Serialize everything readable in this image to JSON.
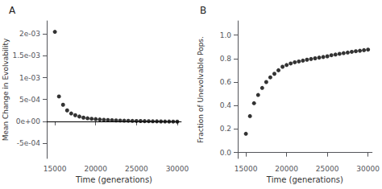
{
  "chart_data": [
    {
      "type": "scatter",
      "title": "A",
      "xlabel": "Time (generations)",
      "ylabel": "Mean Change in Evolvability",
      "x": [
        15000,
        15500,
        16000,
        16500,
        17000,
        17500,
        18000,
        18500,
        19000,
        19500,
        20000,
        20500,
        21000,
        21500,
        22000,
        22500,
        23000,
        23500,
        24000,
        24500,
        25000,
        25500,
        26000,
        26500,
        27000,
        27500,
        28000,
        28500,
        29000,
        29500,
        30000
      ],
      "values": [
        0.00205,
        0.00057,
        0.00038,
        0.00025,
        0.00018,
        0.00014,
        0.00011,
        8.5e-05,
        7e-05,
        5.8e-05,
        5e-05,
        4.2e-05,
        3.6e-05,
        3e-05,
        2.5e-05,
        2e-05,
        1.7e-05,
        1.5e-05,
        1.2e-05,
        1e-05,
        8e-06,
        6e-06,
        4e-06,
        3e-06,
        1e-06,
        0.0,
        -2e-06,
        -4e-06,
        -5e-06,
        -6e-06,
        -7e-06
      ],
      "color": "#000000",
      "reference_line": {
        "y": -4e-05,
        "color": "#000000"
      },
      "xlim": [
        14000,
        30500
      ],
      "xticks": [
        15000,
        20000,
        25000,
        30000
      ],
      "ylim": [
        -0.00085,
        0.0023
      ],
      "yticks": [
        {
          "value": -0.0005,
          "label": "-5e-04"
        },
        {
          "value": 0.0,
          "label": "0e+00"
        },
        {
          "value": 0.0005,
          "label": "5e-04"
        },
        {
          "value": 0.001,
          "label": "1e-03"
        },
        {
          "value": 0.0015,
          "label": "1.5e-03"
        },
        {
          "value": 0.002,
          "label": "2e-03"
        }
      ],
      "grid": false
    },
    {
      "type": "scatter",
      "title": "B",
      "xlabel": "Time (generations)",
      "ylabel": "Fraction of Unevolvable Pops.",
      "x": [
        15000,
        15500,
        16000,
        16500,
        17000,
        17500,
        18000,
        18500,
        19000,
        19500,
        20000,
        20500,
        21000,
        21500,
        22000,
        22500,
        23000,
        23500,
        24000,
        24500,
        25000,
        25500,
        26000,
        26500,
        27000,
        27500,
        28000,
        28500,
        29000,
        29500,
        30000
      ],
      "values": [
        0.16,
        0.31,
        0.42,
        0.49,
        0.55,
        0.6,
        0.64,
        0.67,
        0.7,
        0.73,
        0.745,
        0.758,
        0.768,
        0.775,
        0.782,
        0.79,
        0.796,
        0.802,
        0.808,
        0.813,
        0.819,
        0.828,
        0.834,
        0.84,
        0.846,
        0.851,
        0.857,
        0.862,
        0.866,
        0.871,
        0.876
      ],
      "color": "#000000",
      "xlim": [
        14000,
        30500
      ],
      "xticks": [
        15000,
        20000,
        25000,
        30000
      ],
      "ylim": [
        -0.05,
        1.12
      ],
      "yticks": [
        {
          "value": 0.0,
          "label": "0.0"
        },
        {
          "value": 0.2,
          "label": "0.2"
        },
        {
          "value": 0.4,
          "label": "0.4"
        },
        {
          "value": 0.6,
          "label": "0.6"
        },
        {
          "value": 0.8,
          "label": "0.8"
        },
        {
          "value": 1.0,
          "label": "1.0"
        }
      ],
      "grid": false
    }
  ]
}
